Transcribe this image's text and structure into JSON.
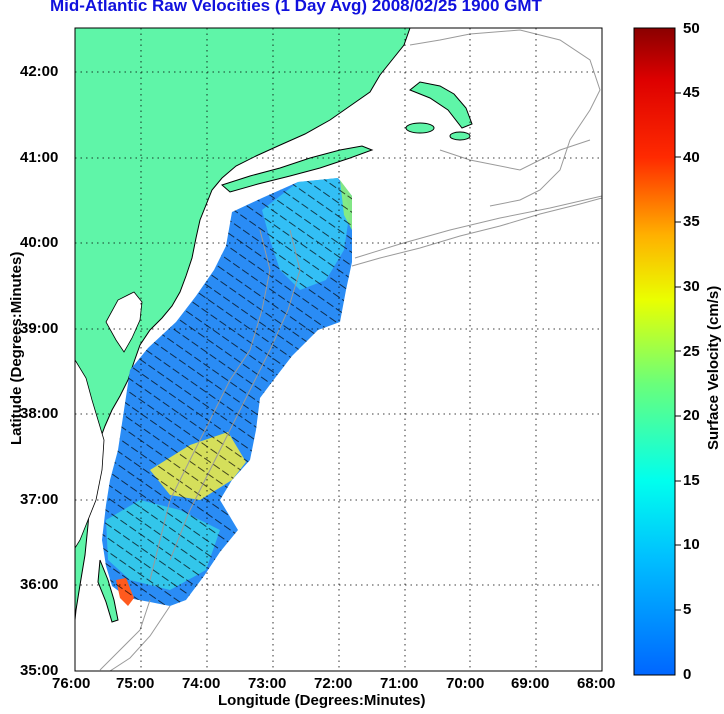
{
  "title": "Mid-Atlantic Raw Velocities (1 Day Avg) 2008/02/25 1900 GMT",
  "map": {
    "xlabel": "Longitude (Degrees:Minutes)",
    "ylabel": "Latitude (Degrees:Minutes)",
    "x_ticks": [
      "76:00",
      "75:00",
      "74:00",
      "73:00",
      "72:00",
      "71:00",
      "70:00",
      "69:00",
      "68:00"
    ],
    "y_ticks": [
      "42:00",
      "41:00",
      "40:00",
      "39:00",
      "38:00",
      "37:00",
      "36:00",
      "35:00"
    ],
    "grid": "dotted",
    "land_color": "#5ff5a8",
    "coast_color": "#000000",
    "bathymetry_color": "#9a9a9a"
  },
  "colorbar": {
    "label": "Surface Velocity (cm/s)",
    "ticks": [
      "50",
      "45",
      "40",
      "35",
      "30",
      "25",
      "20",
      "15",
      "10",
      "5",
      "0"
    ],
    "range": [
      0,
      50
    ],
    "colormap": "jet"
  }
}
